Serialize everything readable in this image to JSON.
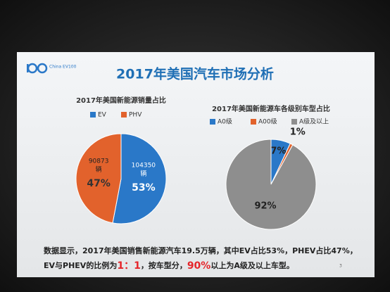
{
  "logo": "China EV100",
  "title": "2017年美国汽车市场分析",
  "chart_data": [
    {
      "type": "pie",
      "title": "2017年美国新能源销量占比",
      "categories": [
        "EV",
        "PHV"
      ],
      "values": [
        53,
        47
      ],
      "value_labels": [
        "53%",
        "47%"
      ],
      "counts": [
        104350,
        90873
      ],
      "count_unit": "辆",
      "colors": [
        "#2a78c8",
        "#e2622c"
      ]
    },
    {
      "type": "pie",
      "title": "2017年美国新能源车各级别车型占比",
      "categories": [
        "A0级",
        "A00级",
        "A级及以上"
      ],
      "values": [
        7,
        1,
        92
      ],
      "value_labels": [
        "7%",
        "1%",
        "92%"
      ],
      "colors": [
        "#2a78c8",
        "#e2622c",
        "#8e8e8e"
      ]
    }
  ],
  "footer": [
    [
      {
        "text": "数据显示，2017年美国销售新能源汽车19.5万辆，其中EV占比53%，PHEV占比47%，"
      }
    ],
    [
      {
        "text": "EV与PHEV的比例为"
      },
      {
        "text": "1：1",
        "highlight": true
      },
      {
        "text": "，按车型分，"
      },
      {
        "text": "90%",
        "highlight": true
      },
      {
        "text": "以上为A级及以上车型。"
      }
    ]
  ],
  "page_number": "3"
}
